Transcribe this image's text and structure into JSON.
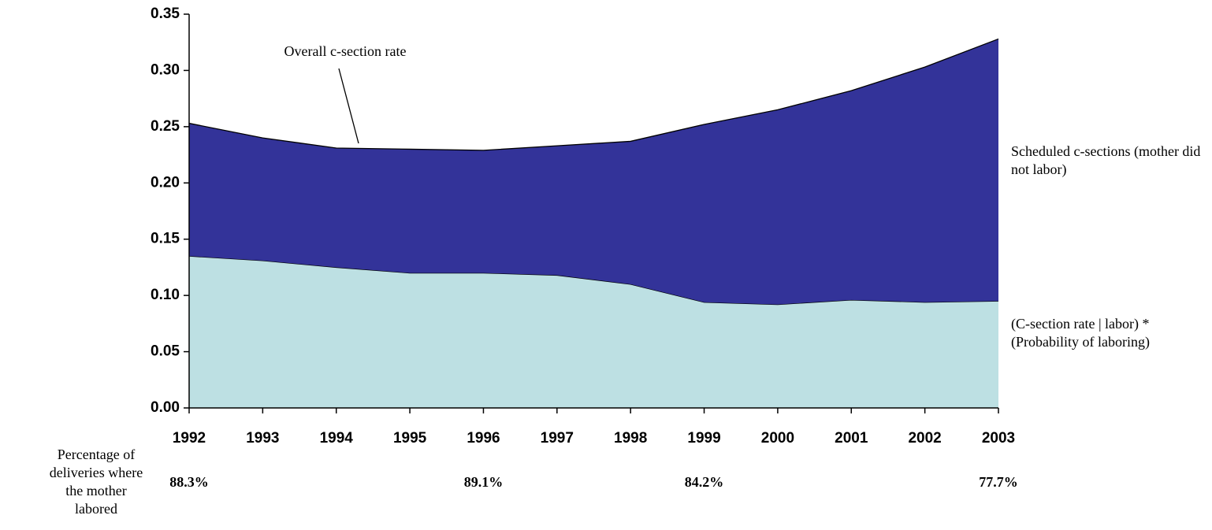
{
  "chart_data": {
    "type": "stacked_area",
    "annotation": "Overall c-section rate",
    "x": [
      1992,
      1993,
      1994,
      1995,
      1996,
      1997,
      1998,
      1999,
      2000,
      2001,
      2002,
      2003
    ],
    "xlim": [
      1992,
      2003
    ],
    "xticks": [
      1992,
      1993,
      1994,
      1995,
      1996,
      1997,
      1998,
      1999,
      2000,
      2001,
      2002,
      2003
    ],
    "ylim": [
      0,
      0.35
    ],
    "yticks": [
      {
        "value": 0,
        "label": "0.00"
      },
      {
        "value": 0.05,
        "label": "0.05"
      },
      {
        "value": 0.1,
        "label": "0.10"
      },
      {
        "value": 0.15,
        "label": "0.15"
      },
      {
        "value": 0.2,
        "label": "0.20"
      },
      {
        "value": 0.25,
        "label": "0.25"
      },
      {
        "value": 0.3,
        "label": "0.30"
      },
      {
        "value": 0.35,
        "label": "0.35"
      }
    ],
    "series": [
      {
        "name": "(C-section rate | labor) * (Probability of laboring)",
        "color": "#bde0e3",
        "values": [
          0.135,
          0.131,
          0.125,
          0.12,
          0.12,
          0.118,
          0.11,
          0.094,
          0.092,
          0.096,
          0.094,
          0.095
        ]
      },
      {
        "name": "Scheduled c-sections (mother did not labor)",
        "color": "#333399",
        "values": [
          0.118,
          0.109,
          0.106,
          0.11,
          0.109,
          0.115,
          0.127,
          0.158,
          0.173,
          0.186,
          0.209,
          0.233
        ]
      }
    ],
    "labor_share": {
      "label": "Percentage of deliveries where the mother labored",
      "x": [
        1992,
        1996,
        1999,
        2003
      ],
      "values": [
        88.3,
        89.1,
        84.2,
        77.7
      ],
      "value_labels": [
        "88.3%",
        "89.1%",
        "84.2%",
        "77.7%"
      ]
    }
  }
}
